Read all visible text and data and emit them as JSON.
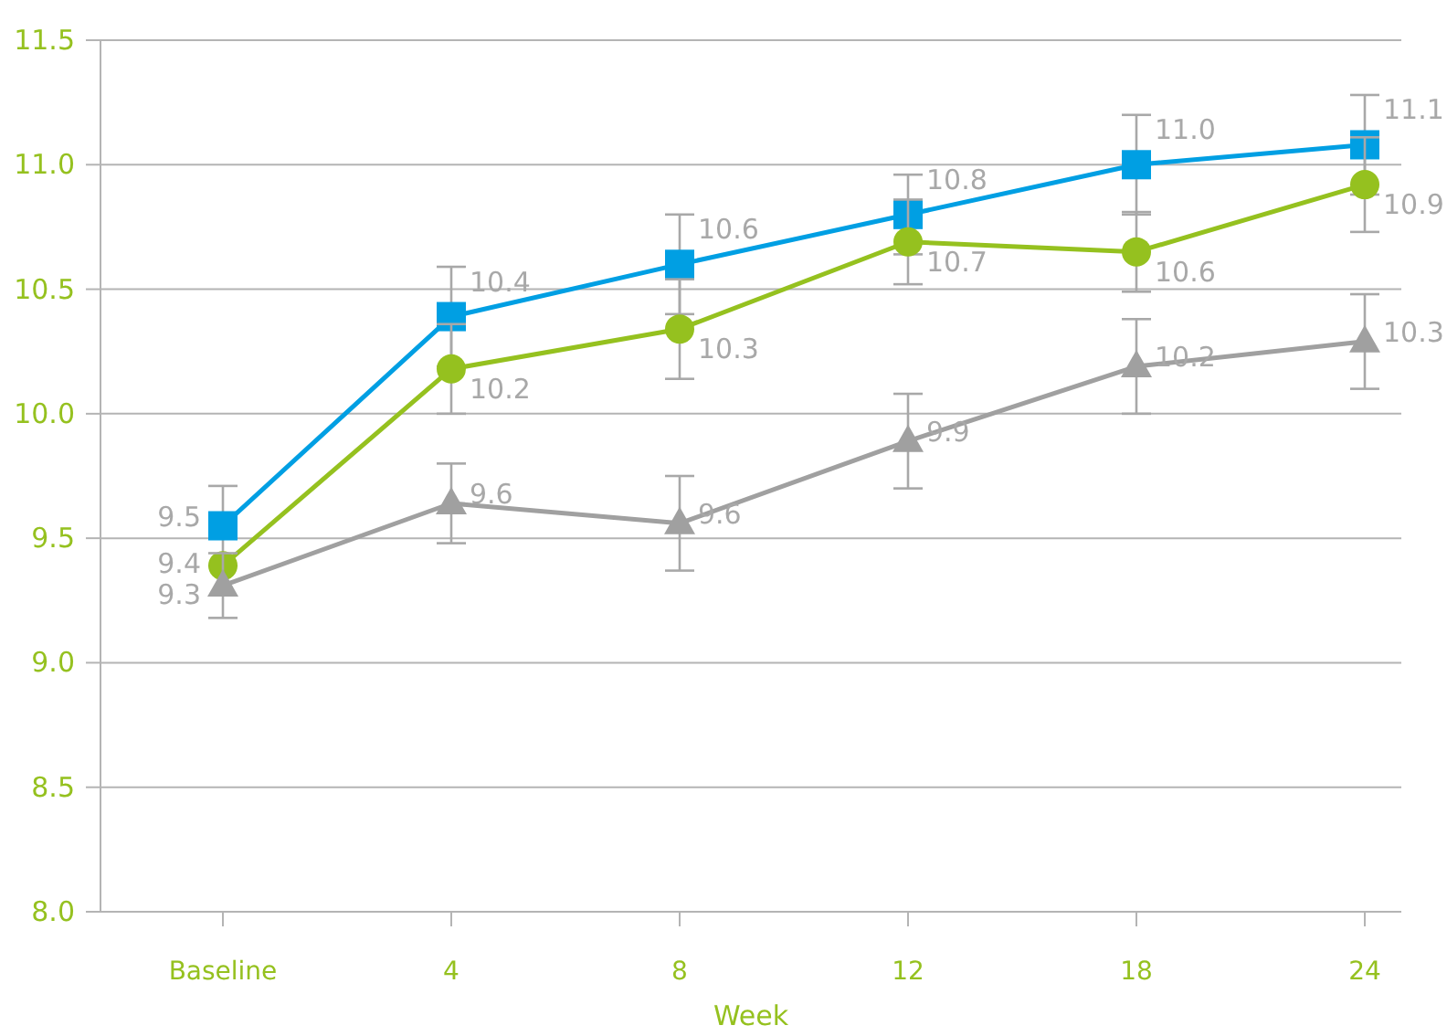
{
  "chart_data": {
    "type": "line",
    "xlabel": "Week",
    "categories": [
      "Baseline",
      "4",
      "8",
      "12",
      "18",
      "24"
    ],
    "ylim": [
      8.0,
      11.5
    ],
    "yticks": [
      {
        "value": 8.0,
        "label": "8.0"
      },
      {
        "value": 8.5,
        "label": "8.5"
      },
      {
        "value": 9.0,
        "label": "9.0"
      },
      {
        "value": 9.5,
        "label": "9.5"
      },
      {
        "value": 10.0,
        "label": "10.0"
      },
      {
        "value": 10.5,
        "label": "10.5"
      },
      {
        "value": 11.0,
        "label": "11.0"
      },
      {
        "value": 11.5,
        "label": "11.5"
      }
    ],
    "grid": "y",
    "line_style": "solid",
    "series": [
      {
        "color": "#009fe3",
        "marker": "square",
        "values": [
          9.55,
          10.39,
          10.6,
          10.8,
          11.0,
          11.08
        ],
        "errors": [
          0.16,
          0.2,
          0.2,
          0.16,
          0.2,
          0.2
        ],
        "value_labels": [
          "9.5",
          "10.4",
          "10.6",
          "10.8",
          "11.0",
          "11.1"
        ]
      },
      {
        "color": "#95c11f",
        "marker": "circle",
        "values": [
          9.39,
          10.18,
          10.34,
          10.69,
          10.65,
          10.92
        ],
        "errors": [
          null,
          0.18,
          0.2,
          0.17,
          0.16,
          0.19
        ],
        "value_labels": [
          "9.4",
          "10.2",
          "10.3",
          "10.7",
          "10.6",
          "10.9"
        ]
      },
      {
        "color": "#a0a0a0",
        "marker": "triangle",
        "values": [
          9.31,
          9.64,
          9.56,
          9.89,
          10.19,
          10.29
        ],
        "errors": [
          0.13,
          0.16,
          0.19,
          0.19,
          0.19,
          0.19
        ],
        "value_labels": [
          "9.3",
          "9.6",
          "9.6",
          "9.9",
          "10.2",
          "10.3"
        ]
      }
    ]
  }
}
